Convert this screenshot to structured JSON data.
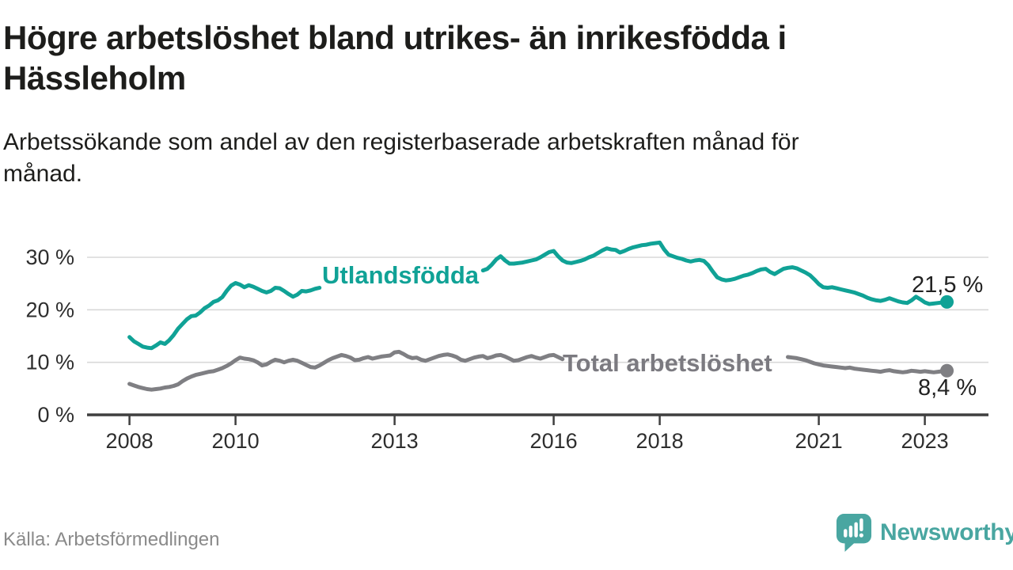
{
  "header": {
    "title_lines": [
      "Högre arbetslöshet bland utrikes- än inrikesfödda i",
      "Hässleholm"
    ],
    "subtitle_lines": [
      "Arbetssökande som andel av den registerbaserade arbetskraften månad för",
      "månad."
    ]
  },
  "footer": {
    "source": "Källa: Arbetsförmedlingen",
    "brand_name": "Newsworthy",
    "brand_icon": "newsworthy-speech-bubble-bar-chart-icon"
  },
  "colors": {
    "foreign_line": "#10A296",
    "total_line": "#7F7F83",
    "grid": "#D8D8D8",
    "axis": "#3F3F3F",
    "text": "#1D1D1B",
    "muted": "#8A8A8A",
    "brand": "#49A6A1"
  },
  "chart_data": {
    "type": "line",
    "title": "Högre arbetslöshet bland utrikes- än inrikesfödda i Hässleholm",
    "subtitle": "Arbetssökande som andel av den registerbaserade arbetskraften månad för månad.",
    "xlabel": "",
    "ylabel": "",
    "grid": "horizontal",
    "xlim": [
      2007.2,
      2024.2
    ],
    "ylim": [
      0,
      35
    ],
    "start_year": 2008,
    "months_per_point": 1,
    "x_ticks": [
      2008,
      2010,
      2013,
      2016,
      2018,
      2021,
      2023
    ],
    "x_tick_labels": [
      "2008",
      "2010",
      "2013",
      "2016",
      "2018",
      "2021",
      "2023"
    ],
    "y_ticks": [
      {
        "v": 0,
        "label": "0 %"
      },
      {
        "v": 10,
        "label": "10 %"
      },
      {
        "v": 20,
        "label": "20 %"
      },
      {
        "v": 30,
        "label": "30 %"
      }
    ],
    "legend_position": "inline-on-line",
    "series": [
      {
        "id": "utlandsfodda",
        "name": "Utlandsfödda",
        "color": "#10A296",
        "end_label": "21,5 %",
        "end_value": 21.5,
        "label_gap_x": [
          2011.64,
          2014.66
        ],
        "values": [
          14.8,
          14.0,
          13.5,
          13.0,
          12.8,
          12.7,
          13.2,
          13.8,
          13.5,
          14.2,
          15.2,
          16.4,
          17.3,
          18.2,
          18.8,
          18.9,
          19.5,
          20.3,
          20.8,
          21.5,
          21.8,
          22.4,
          23.6,
          24.6,
          25.1,
          24.8,
          24.3,
          24.7,
          24.4,
          24.0,
          23.6,
          23.3,
          23.6,
          24.2,
          24.1,
          23.6,
          23.0,
          22.5,
          22.9,
          23.6,
          23.5,
          23.7,
          24.0,
          24.2,
          24.3,
          24.4,
          24.5,
          24.6,
          24.7,
          24.8,
          24.9,
          25.0,
          25.1,
          25.2,
          25.3,
          25.4,
          25.5,
          25.6,
          25.7,
          25.8,
          25.9,
          26.0,
          26.1,
          26.2,
          26.3,
          26.4,
          26.5,
          26.6,
          26.7,
          26.8,
          26.9,
          27.0,
          27.1,
          27.1,
          27.2,
          27.2,
          27.3,
          27.3,
          27.4,
          27.4,
          27.5,
          27.8,
          28.6,
          29.6,
          30.2,
          29.4,
          28.8,
          28.8,
          28.9,
          29.0,
          29.2,
          29.4,
          29.6,
          30.0,
          30.5,
          31.0,
          31.2,
          30.2,
          29.4,
          29.0,
          28.9,
          29.1,
          29.3,
          29.6,
          30.0,
          30.3,
          30.8,
          31.3,
          31.7,
          31.5,
          31.4,
          30.9,
          31.2,
          31.6,
          31.9,
          32.1,
          32.3,
          32.4,
          32.6,
          32.7,
          32.8,
          31.5,
          30.5,
          30.2,
          29.9,
          29.7,
          29.4,
          29.2,
          29.4,
          29.5,
          29.3,
          28.5,
          27.3,
          26.2,
          25.8,
          25.6,
          25.7,
          25.9,
          26.2,
          26.5,
          26.7,
          27.0,
          27.4,
          27.7,
          27.8,
          27.2,
          26.8,
          27.3,
          27.8,
          28.0,
          28.1,
          27.9,
          27.5,
          27.1,
          26.6,
          25.8,
          24.9,
          24.3,
          24.2,
          24.3,
          24.1,
          23.9,
          23.7,
          23.5,
          23.3,
          23.0,
          22.7,
          22.3,
          22.0,
          21.8,
          21.7,
          21.9,
          22.2,
          21.9,
          21.6,
          21.4,
          21.3,
          21.8,
          22.5,
          22.0,
          21.4,
          21.1,
          21.2,
          21.3,
          21.4,
          21.5
        ]
      },
      {
        "id": "total",
        "name": "Total arbetslöshet",
        "color": "#7F7F83",
        "end_label": "8,4 %",
        "end_value": 8.4,
        "label_gap_x": [
          2016.17,
          2020.35
        ],
        "values": [
          5.9,
          5.6,
          5.3,
          5.1,
          4.9,
          4.8,
          4.9,
          5.0,
          5.2,
          5.3,
          5.5,
          5.8,
          6.4,
          6.9,
          7.3,
          7.6,
          7.8,
          8.0,
          8.2,
          8.3,
          8.6,
          8.9,
          9.3,
          9.8,
          10.4,
          10.9,
          10.7,
          10.6,
          10.4,
          10.0,
          9.4,
          9.6,
          10.1,
          10.5,
          10.3,
          10.0,
          10.3,
          10.5,
          10.3,
          9.9,
          9.5,
          9.1,
          9.0,
          9.4,
          9.9,
          10.4,
          10.8,
          11.1,
          11.4,
          11.2,
          10.9,
          10.4,
          10.5,
          10.8,
          11.0,
          10.7,
          10.9,
          11.1,
          11.2,
          11.3,
          11.9,
          12.0,
          11.6,
          11.1,
          10.8,
          10.9,
          10.5,
          10.3,
          10.6,
          10.9,
          11.2,
          11.4,
          11.5,
          11.3,
          11.0,
          10.5,
          10.3,
          10.6,
          10.9,
          11.1,
          11.2,
          10.8,
          11.0,
          11.3,
          11.4,
          11.1,
          10.7,
          10.3,
          10.4,
          10.7,
          11.0,
          11.2,
          10.9,
          10.7,
          11.0,
          11.3,
          11.4,
          11.0,
          10.6,
          10.4,
          10.5,
          10.7,
          10.9,
          11.0,
          10.8,
          10.7,
          10.8,
          11.0,
          11.1,
          10.9,
          10.7,
          10.5,
          10.4,
          10.5,
          10.7,
          10.8,
          10.7,
          10.5,
          10.6,
          10.8,
          10.9,
          10.7,
          10.5,
          10.3,
          10.1,
          10.0,
          10.1,
          10.3,
          10.4,
          10.3,
          10.2,
          10.4,
          10.5,
          10.3,
          10.1,
          9.9,
          9.8,
          9.9,
          10.0,
          10.2,
          10.3,
          10.2,
          10.3,
          10.5,
          10.7,
          10.9,
          11.0,
          11.2,
          11.1,
          11.0,
          10.9,
          10.8,
          10.6,
          10.4,
          10.1,
          9.8,
          9.6,
          9.4,
          9.3,
          9.2,
          9.1,
          9.0,
          8.9,
          9.0,
          8.8,
          8.7,
          8.6,
          8.5,
          8.4,
          8.3,
          8.2,
          8.4,
          8.5,
          8.3,
          8.2,
          8.1,
          8.2,
          8.4,
          8.3,
          8.2,
          8.3,
          8.2,
          8.1,
          8.2,
          8.3,
          8.4
        ]
      }
    ]
  }
}
